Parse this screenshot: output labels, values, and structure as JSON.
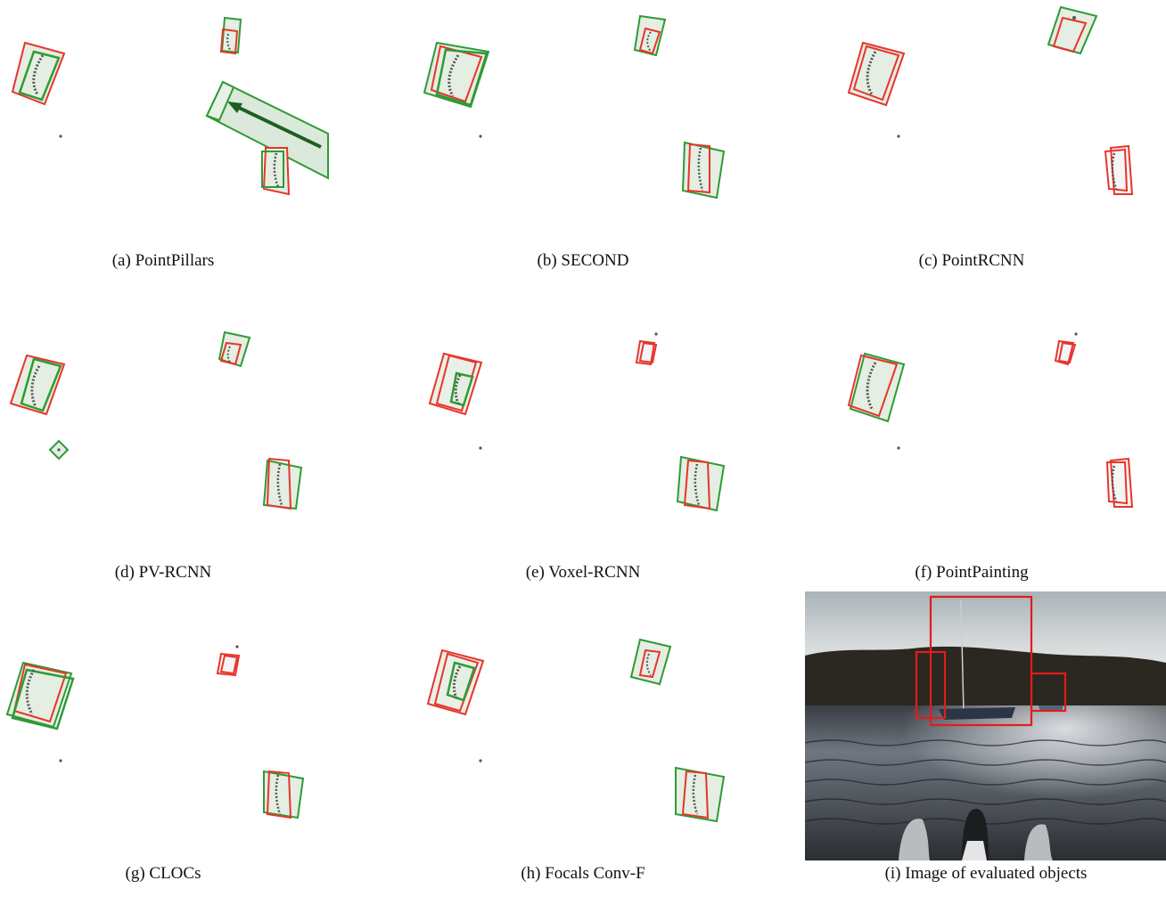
{
  "figure": {
    "panels": [
      {
        "id": "a",
        "caption": "(a) PointPillars"
      },
      {
        "id": "b",
        "caption": "(b) SECOND"
      },
      {
        "id": "c",
        "caption": "(c) PointRCNN"
      },
      {
        "id": "d",
        "caption": "(d) PV-RCNN"
      },
      {
        "id": "e",
        "caption": "(e) Voxel-RCNN"
      },
      {
        "id": "f",
        "caption": "(f) PointPainting"
      },
      {
        "id": "g",
        "caption": "(g) CLOCs"
      },
      {
        "id": "h",
        "caption": "(h) Focals Conv-F"
      },
      {
        "id": "i",
        "caption": "(i) Image of evaluated objects"
      }
    ]
  },
  "colors": {
    "ground_truth_box": "#e8342c",
    "prediction_box": "#2e9b34",
    "box_fill": "#e4eee2",
    "points": "#555555"
  }
}
